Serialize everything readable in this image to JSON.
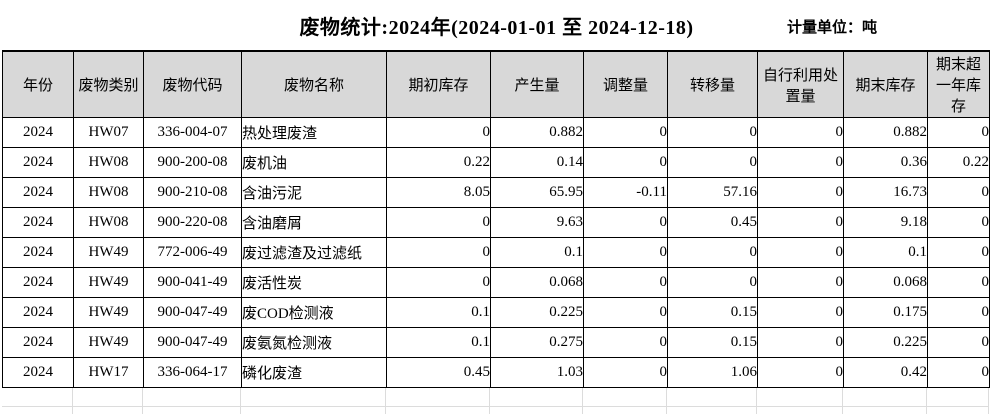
{
  "header": {
    "title": "废物统计:2024年(2024-01-01 至 2024-12-18)",
    "unit_label": "计量单位：吨"
  },
  "table": {
    "columns": [
      {
        "id": "year",
        "label": "年份",
        "align": "center"
      },
      {
        "id": "waste-category",
        "label": "废物类别",
        "align": "center"
      },
      {
        "id": "waste-code",
        "label": "废物代码",
        "align": "center"
      },
      {
        "id": "waste-name",
        "label": "废物名称",
        "align": "left"
      },
      {
        "id": "opening-stock",
        "label": "期初库存",
        "align": "right"
      },
      {
        "id": "generated-amount",
        "label": "产生量",
        "align": "right"
      },
      {
        "id": "adjustment-amount",
        "label": "调整量",
        "align": "right"
      },
      {
        "id": "transferred-amount",
        "label": "转移量",
        "align": "right"
      },
      {
        "id": "self-disposal-amount",
        "label": "自行利用处置量",
        "align": "right"
      },
      {
        "id": "closing-stock",
        "label": "期末库存",
        "align": "right"
      },
      {
        "id": "over-one-year-stock",
        "label": "期末超一年库存",
        "align": "right"
      }
    ],
    "rows": [
      {
        "cells": [
          "2024",
          "HW07",
          "336-004-07",
          "热处理废渣",
          "0",
          "0.882",
          "0",
          "0",
          "0",
          "0.882",
          "0"
        ]
      },
      {
        "cells": [
          "2024",
          "HW08",
          "900-200-08",
          "废机油",
          "0.22",
          "0.14",
          "0",
          "0",
          "0",
          "0.36",
          "0.22"
        ]
      },
      {
        "cells": [
          "2024",
          "HW08",
          "900-210-08",
          "含油污泥",
          "8.05",
          "65.95",
          "-0.11",
          "57.16",
          "0",
          "16.73",
          "0"
        ]
      },
      {
        "cells": [
          "2024",
          "HW08",
          "900-220-08",
          "含油磨屑",
          "0",
          "9.63",
          "0",
          "0.45",
          "0",
          "9.18",
          "0"
        ]
      },
      {
        "cells": [
          "2024",
          "HW49",
          "772-006-49",
          "废过滤渣及过滤纸",
          "0",
          "0.1",
          "0",
          "0",
          "0",
          "0.1",
          "0"
        ]
      },
      {
        "cells": [
          "2024",
          "HW49",
          "900-041-49",
          "废活性炭",
          "0",
          "0.068",
          "0",
          "0",
          "0",
          "0.068",
          "0"
        ]
      },
      {
        "cells": [
          "2024",
          "HW49",
          "900-047-49",
          "废COD检测液",
          "0.1",
          "0.225",
          "0",
          "0.15",
          "0",
          "0.175",
          "0"
        ]
      },
      {
        "cells": [
          "2024",
          "HW49",
          "900-047-49",
          "废氨氮检测液",
          "0.1",
          "0.275",
          "0",
          "0.15",
          "0",
          "0.225",
          "0"
        ]
      },
      {
        "cells": [
          "2024",
          "HW17",
          "336-064-17",
          "磷化废渣",
          "0.45",
          "1.03",
          "0",
          "1.06",
          "0",
          "0.42",
          "0"
        ]
      }
    ]
  },
  "colors": {
    "header_background": "#d8d8d8",
    "table_border": "#000000",
    "empty_grid_lines": "#dcdcdc",
    "page_background": "#ffffff",
    "text": "#000000"
  }
}
